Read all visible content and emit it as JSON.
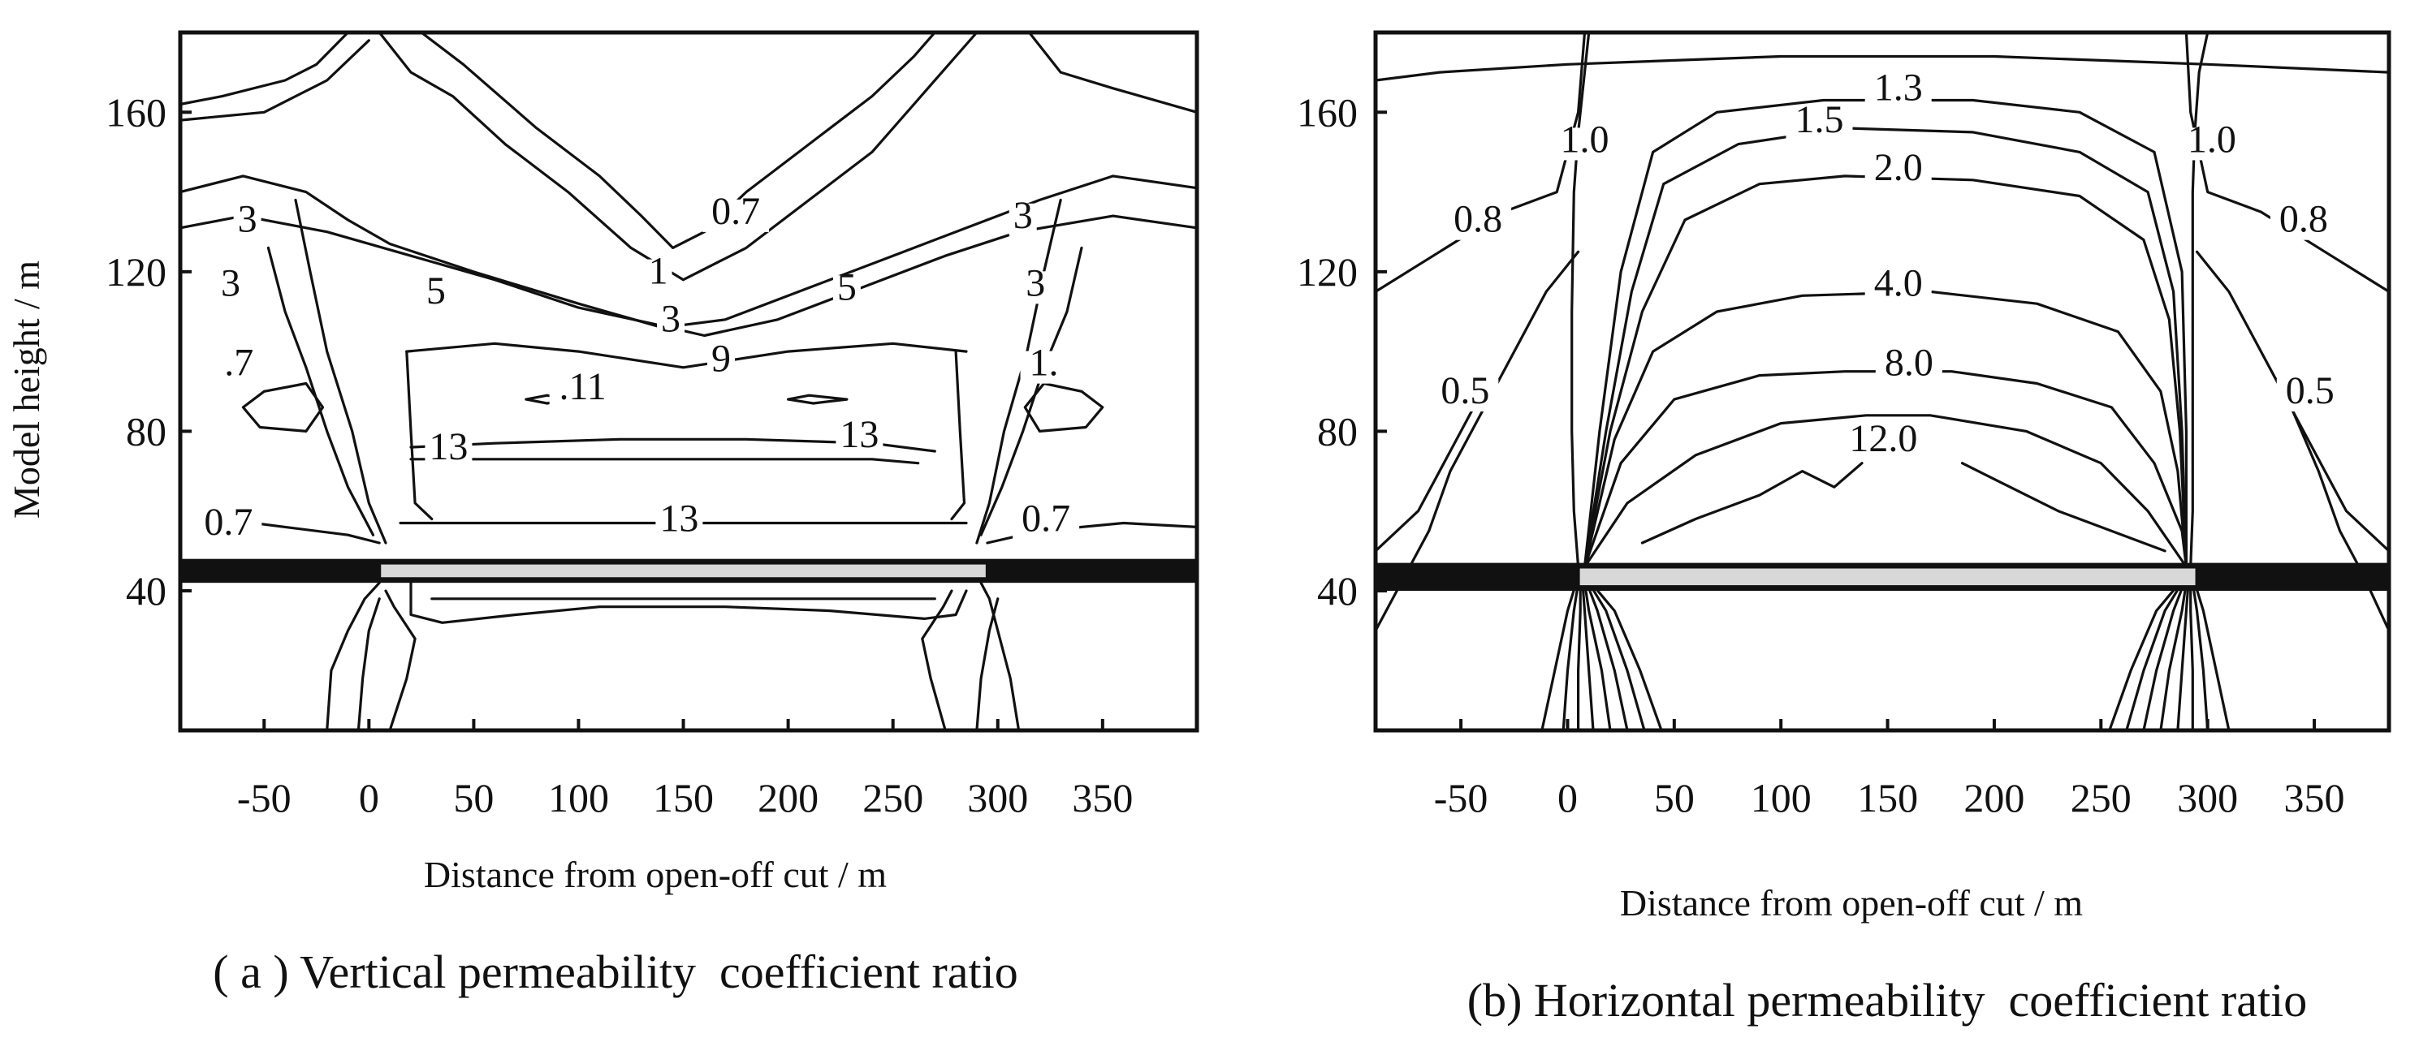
{
  "chart_data": [
    {
      "type": "contour",
      "panel": "a",
      "caption": "( a ) Vertical permeability  coefficient ratio",
      "xlabel": "Distance from open-off cut / m",
      "ylabel": "Model height / m",
      "xlim": [
        -90,
        395
      ],
      "ylim": [
        5,
        180
      ],
      "xticks": [
        -50,
        0,
        50,
        100,
        150,
        200,
        250,
        300,
        350
      ],
      "yticks": [
        40,
        80,
        120,
        160
      ],
      "grid": false,
      "coal_seam": {
        "y_range": [
          42,
          48
        ],
        "x_extent": [
          -90,
          395
        ]
      },
      "goaf": {
        "x_range": [
          5,
          295
        ],
        "y_range": [
          43,
          47
        ]
      },
      "contour_labels": [
        {
          "text": "0.7",
          "x": 175,
          "y": 132
        },
        {
          "text": "3",
          "x": -58,
          "y": 130
        },
        {
          "text": "3",
          "x": 312,
          "y": 131
        },
        {
          "text": "5",
          "x": 32,
          "y": 112
        },
        {
          "text": "1",
          "x": 138,
          "y": 117
        },
        {
          "text": "5",
          "x": 228,
          "y": 113
        },
        {
          "text": "3",
          "x": -66,
          "y": 114
        },
        {
          "text": "3",
          "x": 318,
          "y": 114
        },
        {
          "text": "3",
          "x": 144,
          "y": 105
        },
        {
          "text": "9",
          "x": 168,
          "y": 95
        },
        {
          "text": ".11",
          "x": 102,
          "y": 88
        },
        {
          "text": ".7",
          "x": -62,
          "y": 94
        },
        {
          "text": "1.",
          "x": 322,
          "y": 94
        },
        {
          "text": "13",
          "x": 234,
          "y": 76
        },
        {
          "text": "13",
          "x": 38,
          "y": 73
        },
        {
          "text": "0.7",
          "x": -67,
          "y": 54
        },
        {
          "text": "0.7",
          "x": 323,
          "y": 55
        },
        {
          "text": "13",
          "x": 148,
          "y": 55
        }
      ]
    },
    {
      "type": "contour",
      "panel": "b",
      "caption": "(b) Horizontal permeability  coefficient ratio",
      "xlabel": "Distance from open-off cut / m",
      "ylabel": "",
      "xlim": [
        -90,
        385
      ],
      "ylim": [
        5,
        180
      ],
      "xticks": [
        -50,
        0,
        50,
        100,
        150,
        200,
        250,
        300,
        350
      ],
      "yticks": [
        40,
        80,
        120,
        160
      ],
      "grid": false,
      "coal_seam": {
        "y_range": [
          40,
          47
        ],
        "x_extent": [
          -90,
          385
        ]
      },
      "goaf": {
        "x_range": [
          5,
          295
        ],
        "y_range": [
          41,
          46
        ]
      },
      "contour_labels": [
        {
          "text": "1.3",
          "x": 155,
          "y": 163
        },
        {
          "text": "1.5",
          "x": 118,
          "y": 155
        },
        {
          "text": "1.0",
          "x": 8,
          "y": 150
        },
        {
          "text": "1.0",
          "x": 302,
          "y": 150
        },
        {
          "text": "2.0",
          "x": 155,
          "y": 143
        },
        {
          "text": "0.8",
          "x": -42,
          "y": 130
        },
        {
          "text": "0.8",
          "x": 345,
          "y": 130
        },
        {
          "text": "4.0",
          "x": 155,
          "y": 114
        },
        {
          "text": "8.0",
          "x": 160,
          "y": 94
        },
        {
          "text": "0.5",
          "x": -48,
          "y": 87
        },
        {
          "text": "0.5",
          "x": 348,
          "y": 87
        },
        {
          "text": "12.0",
          "x": 148,
          "y": 75
        }
      ]
    }
  ]
}
